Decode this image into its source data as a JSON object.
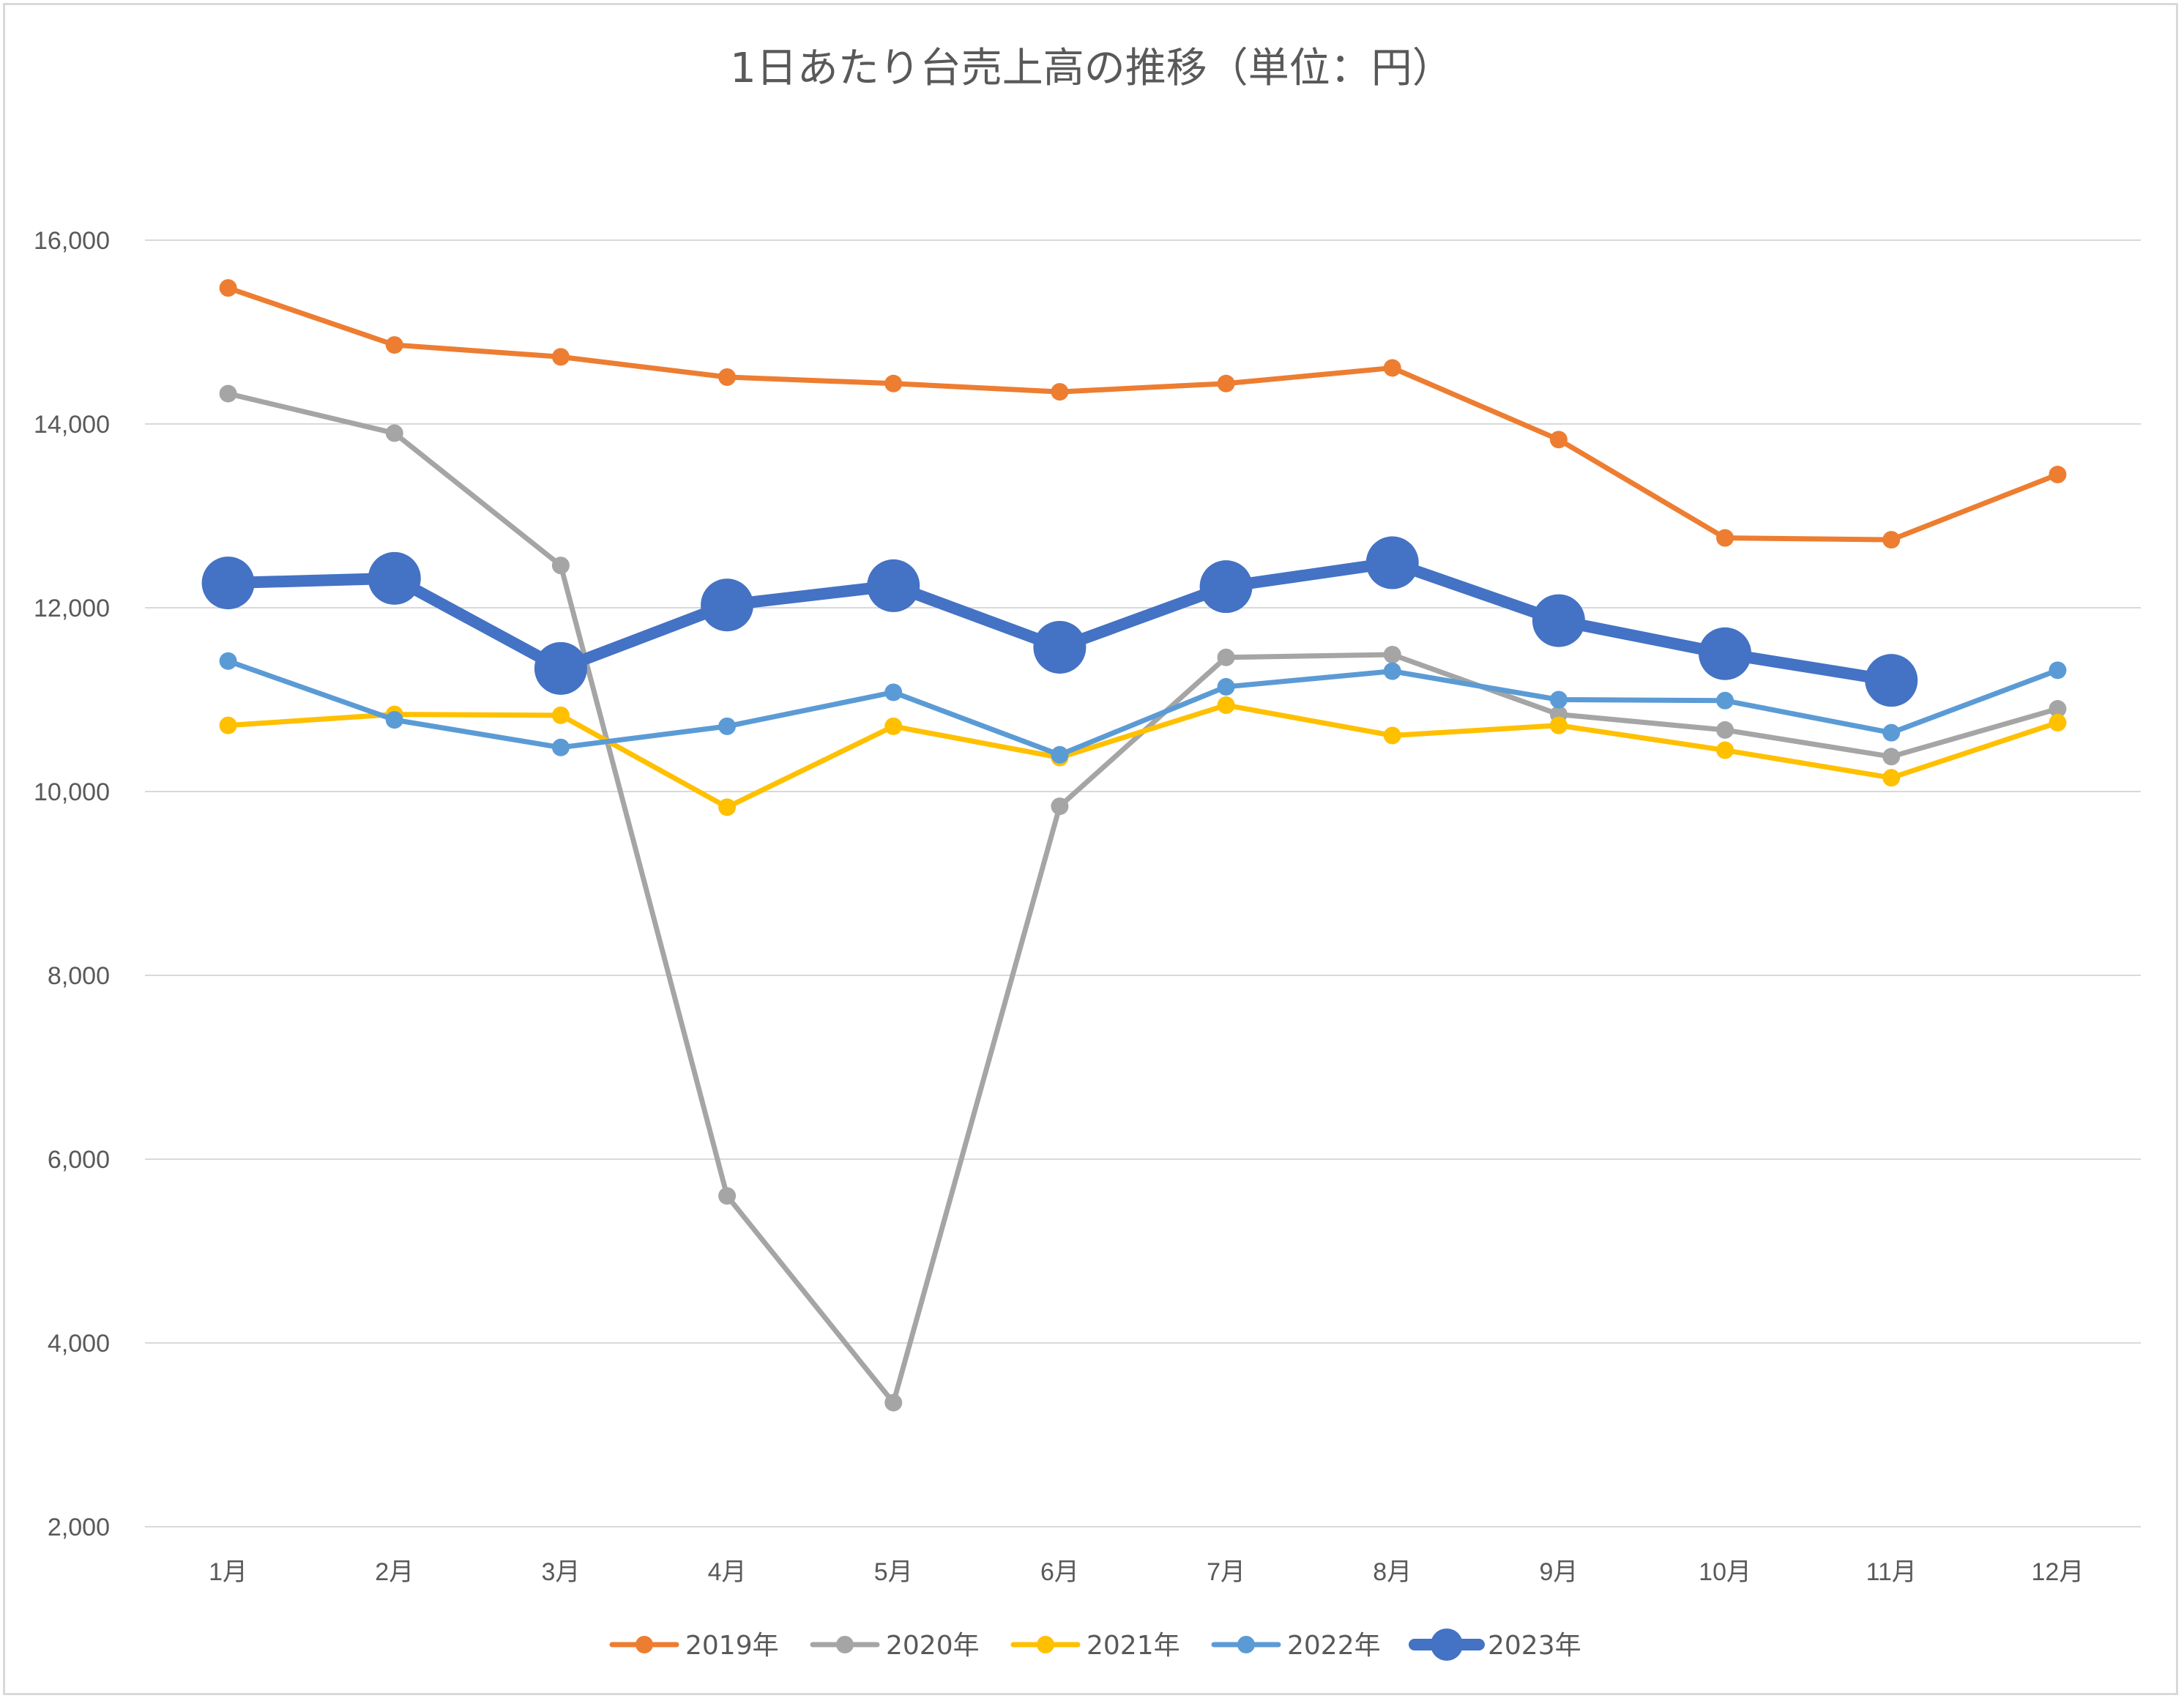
{
  "chart_data": {
    "type": "line",
    "title": "1日あたり台売上高の推移（単位：円）",
    "xlabel": "",
    "ylabel": "",
    "categories": [
      "1月",
      "2月",
      "3月",
      "4月",
      "5月",
      "6月",
      "7月",
      "8月",
      "9月",
      "10月",
      "11月",
      "12月"
    ],
    "ylim": [
      2000,
      16000
    ],
    "yticks": [
      2000,
      4000,
      6000,
      8000,
      10000,
      12000,
      14000,
      16000
    ],
    "ytick_labels": [
      "2,000",
      "4,000",
      "6,000",
      "8,000",
      "10,000",
      "12,000",
      "14,000",
      "16,000"
    ],
    "grid": true,
    "legend_position": "bottom",
    "series": [
      {
        "name": "2019年",
        "color": "#ED7D31",
        "emphasis": false,
        "values": [
          15480,
          14860,
          14730,
          14510,
          14440,
          14350,
          14440,
          14610,
          13830,
          12760,
          12740,
          13450
        ]
      },
      {
        "name": "2020年",
        "color": "#A5A5A5",
        "emphasis": false,
        "values": [
          14330,
          13900,
          12460,
          5600,
          3350,
          9840,
          11460,
          11490,
          10840,
          10670,
          10380,
          10900
        ]
      },
      {
        "name": "2021年",
        "color": "#FFC000",
        "emphasis": false,
        "values": [
          10720,
          10840,
          10830,
          9830,
          10710,
          10370,
          10940,
          10610,
          10720,
          10450,
          10150,
          10750
        ]
      },
      {
        "name": "2022年",
        "color": "#5B9BD5",
        "emphasis": false,
        "values": [
          11420,
          10780,
          10480,
          10710,
          11080,
          10400,
          11140,
          11310,
          11000,
          10990,
          10640,
          11320
        ]
      },
      {
        "name": "2023年",
        "color": "#4472C4",
        "emphasis": true,
        "values": [
          12270,
          12320,
          11340,
          12030,
          12240,
          11570,
          12230,
          12490,
          11860,
          11500,
          11210,
          null
        ]
      }
    ]
  }
}
